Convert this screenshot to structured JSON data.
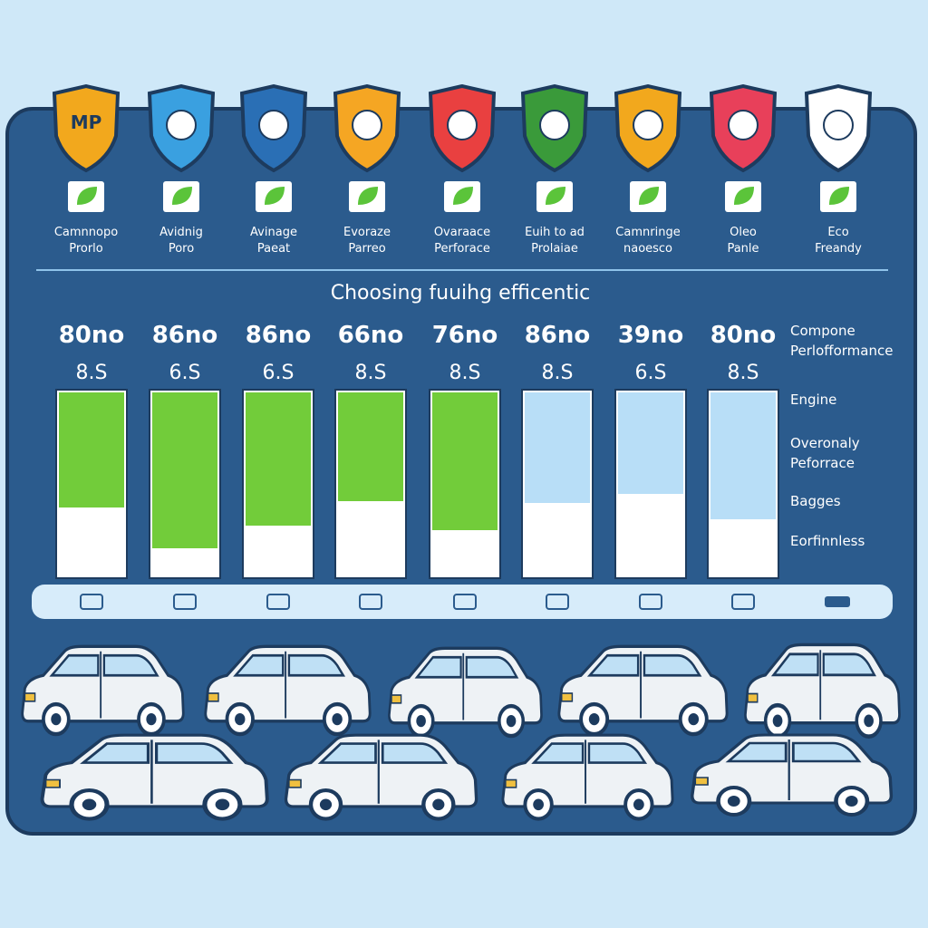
{
  "badges": [
    {
      "icon_text": "MP",
      "label": [
        "Camnnopo",
        "Prorlo"
      ]
    },
    {
      "icon_text": null,
      "label": [
        "Avidnig",
        "Poro"
      ]
    },
    {
      "icon_text": null,
      "label": [
        "Avinage",
        "Paeat"
      ]
    },
    {
      "icon_text": null,
      "label": [
        "Evoraze",
        "Parreo"
      ]
    },
    {
      "icon_text": null,
      "label": [
        "Ovaraace",
        "Perforace"
      ]
    },
    {
      "icon_text": null,
      "label": [
        "Euih to ad",
        "Prolaiae"
      ]
    },
    {
      "icon_text": null,
      "label": [
        "Camnringe",
        "naoesco"
      ]
    },
    {
      "icon_text": null,
      "label": [
        "Oleo",
        "Panle"
      ]
    },
    {
      "icon_text": null,
      "label": [
        "Eco",
        "Freandy"
      ]
    }
  ],
  "title": "Choosing fuuihg efficentic",
  "bars": [
    {
      "top": "80no",
      "sub": "8.S"
    },
    {
      "top": "86no",
      "sub": "6.S"
    },
    {
      "top": "86no",
      "sub": "6.S"
    },
    {
      "top": "66no",
      "sub": "8.S"
    },
    {
      "top": "76no",
      "sub": "8.S"
    },
    {
      "top": "86no",
      "sub": "8.S"
    },
    {
      "top": "39no",
      "sub": "6.S"
    },
    {
      "top": "80no",
      "sub": "8.S"
    }
  ],
  "side_labels": [
    [
      "Compone",
      "Perlofformance"
    ],
    [
      "Engine"
    ],
    [
      "Overonaly",
      "Peforrace"
    ],
    [
      "Bagges"
    ],
    [
      "Eorfinnless"
    ]
  ]
}
